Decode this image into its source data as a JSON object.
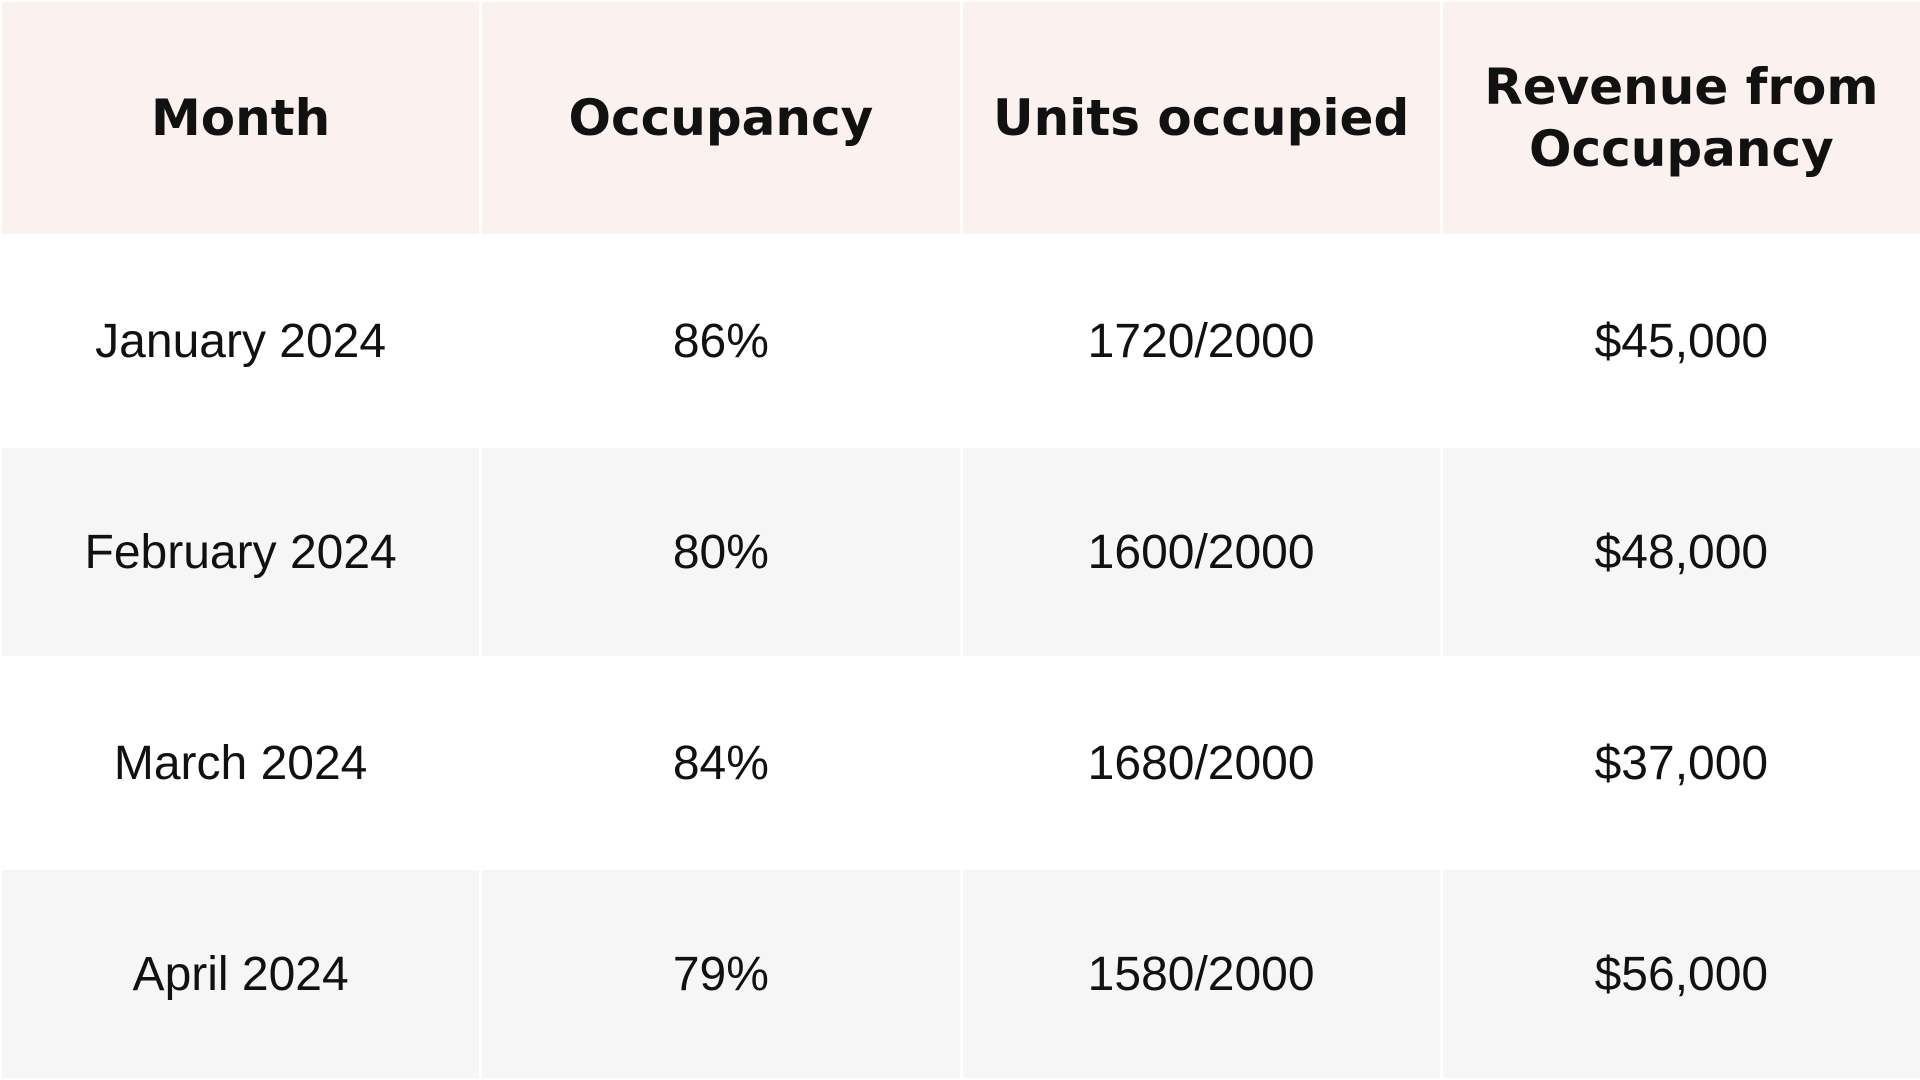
{
  "table": {
    "header": [
      "Month",
      "Occupancy",
      "Units occupied",
      "Revenue from Occupancy"
    ],
    "rows": [
      [
        "January 2024",
        "86%",
        "1720/2000",
        "$45,000"
      ],
      [
        "February 2024",
        "80%",
        "1600/2000",
        "$48,000"
      ],
      [
        "March 2024",
        "84%",
        "1680/2000",
        "$37,000"
      ],
      [
        "April 2024",
        "79%",
        "1580/2000",
        "$56,000"
      ]
    ]
  }
}
